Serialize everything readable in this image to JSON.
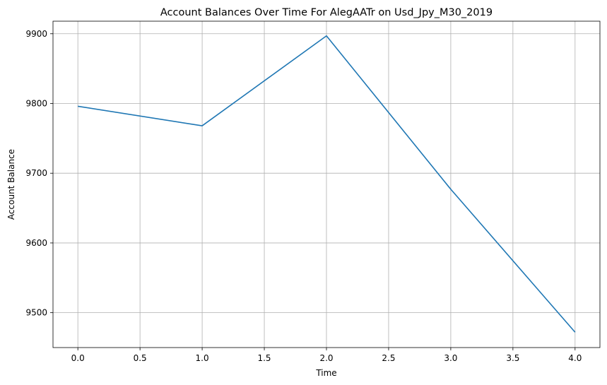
{
  "chart_data": {
    "type": "line",
    "title": "Account Balances Over Time For AlegAATr on Usd_Jpy_M30_2019",
    "xlabel": "Time",
    "ylabel": "Account Balance",
    "x": [
      0,
      1,
      2,
      3,
      4
    ],
    "series": [
      {
        "values": [
          9796,
          9768,
          9897,
          9677,
          9472
        ],
        "color": "#1f77b4"
      }
    ],
    "xlim": [
      -0.2,
      4.2
    ],
    "ylim": [
      9450,
      9918
    ],
    "xticks": [
      0.0,
      0.5,
      1.0,
      1.5,
      2.0,
      2.5,
      3.0,
      3.5,
      4.0
    ],
    "xtick_labels": [
      "0.0",
      "0.5",
      "1.0",
      "1.5",
      "2.0",
      "2.5",
      "3.0",
      "3.5",
      "4.0"
    ],
    "yticks": [
      9500,
      9600,
      9700,
      9800,
      9900
    ],
    "ytick_labels": [
      "9500",
      "9600",
      "9700",
      "9800",
      "9900"
    ],
    "grid": true,
    "legend": "none"
  }
}
